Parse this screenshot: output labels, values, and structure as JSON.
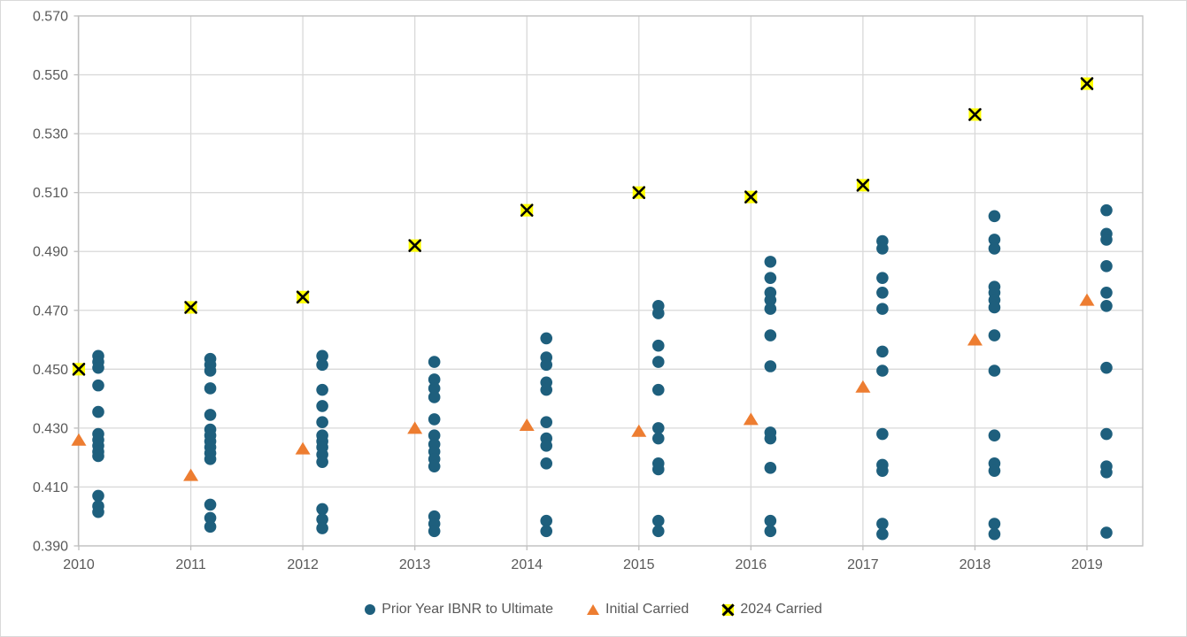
{
  "chart_data": {
    "type": "scatter",
    "categories": [
      "2010",
      "2011",
      "2012",
      "2013",
      "2014",
      "2015",
      "2016",
      "2017",
      "2018",
      "2019"
    ],
    "series": [
      {
        "name": "Prior Year IBNR to Ultimate",
        "marker": "circle",
        "color": "#1E5F7D",
        "points_by_year": [
          [
            0.4545,
            0.4525,
            0.4505,
            0.4445,
            0.4355,
            0.428,
            0.426,
            0.424,
            0.422,
            0.4205,
            0.407,
            0.4035,
            0.4015
          ],
          [
            0.4535,
            0.4515,
            0.4495,
            0.4435,
            0.4345,
            0.4295,
            0.4275,
            0.4255,
            0.4235,
            0.4215,
            0.4195,
            0.404,
            0.3995,
            0.3965
          ],
          [
            0.4545,
            0.4515,
            0.443,
            0.4375,
            0.432,
            0.4275,
            0.4255,
            0.4235,
            0.421,
            0.4185,
            0.4025,
            0.399,
            0.396
          ],
          [
            0.4525,
            0.4465,
            0.4435,
            0.4405,
            0.433,
            0.4275,
            0.4245,
            0.422,
            0.4195,
            0.417,
            0.4,
            0.3975,
            0.395
          ],
          [
            0.4605,
            0.454,
            0.4515,
            0.4455,
            0.443,
            0.432,
            0.4265,
            0.424,
            0.418,
            0.3985,
            0.395
          ],
          [
            0.4715,
            0.469,
            0.458,
            0.4525,
            0.443,
            0.43,
            0.4265,
            0.418,
            0.416,
            0.3985,
            0.395
          ],
          [
            0.4865,
            0.481,
            0.476,
            0.4735,
            0.4705,
            0.4615,
            0.451,
            0.4285,
            0.4265,
            0.4165,
            0.3985,
            0.395
          ],
          [
            0.4935,
            0.491,
            0.481,
            0.476,
            0.4705,
            0.456,
            0.4495,
            0.428,
            0.4175,
            0.4155,
            0.3975,
            0.394
          ],
          [
            0.502,
            0.494,
            0.491,
            0.478,
            0.476,
            0.4735,
            0.471,
            0.4615,
            0.4495,
            0.4275,
            0.418,
            0.4155,
            0.3975,
            0.394
          ],
          [
            0.504,
            0.496,
            0.494,
            0.485,
            0.476,
            0.4715,
            0.4505,
            0.428,
            0.417,
            0.415,
            0.3945
          ]
        ]
      },
      {
        "name": "Initial Carried",
        "marker": "triangle",
        "color": "#ED7D31",
        "values": [
          0.426,
          0.414,
          0.423,
          0.43,
          0.431,
          0.429,
          0.433,
          0.444,
          0.46,
          0.4735
        ]
      },
      {
        "name": "2024 Carried",
        "marker": "x",
        "fill": "#FFFF00",
        "stroke": "#000000",
        "values": [
          0.45,
          0.471,
          0.4745,
          0.492,
          0.504,
          0.51,
          0.5085,
          0.5125,
          0.5365,
          0.547
        ]
      }
    ],
    "y_axis": {
      "min": 0.39,
      "max": 0.57,
      "step": 0.02,
      "tick_labels": [
        "0.390",
        "0.410",
        "0.430",
        "0.450",
        "0.470",
        "0.490",
        "0.510",
        "0.530",
        "0.550",
        "0.570"
      ]
    },
    "x_axis": {
      "tick_labels": [
        "2010",
        "2011",
        "2012",
        "2013",
        "2014",
        "2015",
        "2016",
        "2017",
        "2018",
        "2019"
      ]
    },
    "ylim": [
      0.39,
      0.57
    ],
    "grid": true,
    "legend_position": "bottom",
    "colors": {
      "gridline": "#D9D9D9",
      "plot_border": "#BFBFBF",
      "axis_text": "#595959",
      "background": "#FFFFFF"
    }
  }
}
